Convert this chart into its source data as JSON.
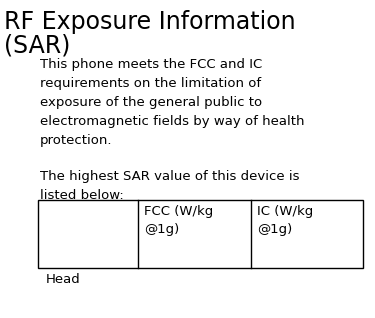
{
  "title_line1": "RF Exposure Information",
  "title_line2": "(SAR)",
  "title_fontsize": 17,
  "body_text1": "This phone meets the FCC and IC\nrequirements on the limitation of\nexposure of the general public to\nelectromagnetic fields by way of health\nprotection.",
  "body_text2": "The highest SAR value of this device is\nlisted below:",
  "body_fontsize": 9.5,
  "col1_header": "FCC (W/kg\n@1g)",
  "col2_header": "IC (W/kg\n@1g)",
  "row1_label": "Head",
  "table_header_fontsize": 9.5,
  "row_label_fontsize": 9.5,
  "bg_color": "#ffffff",
  "text_color": "#000000"
}
